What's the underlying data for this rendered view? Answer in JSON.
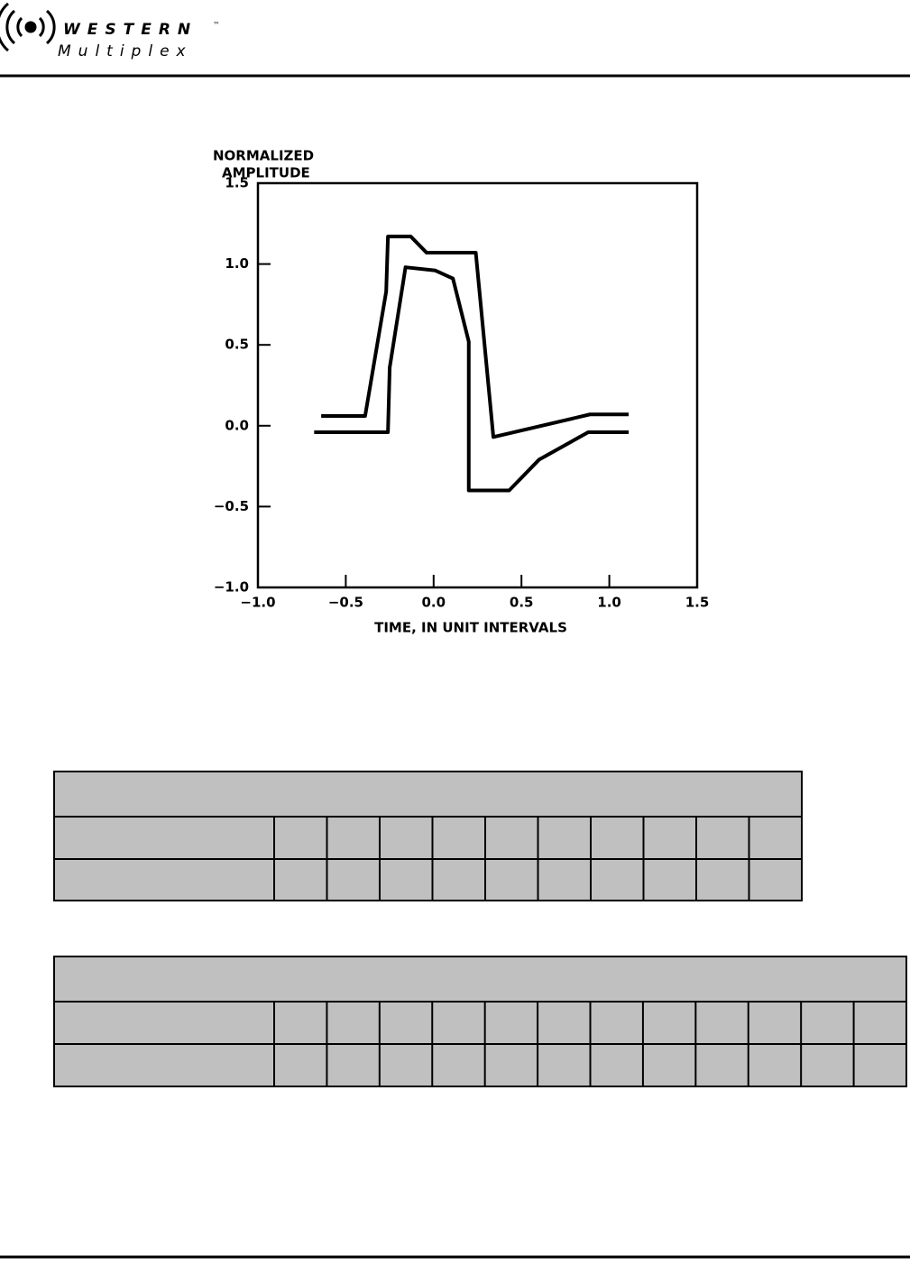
{
  "header": {
    "logo_name": "WESTERN",
    "logo_tm": "™",
    "logo_sub": "Multiplex"
  },
  "chart_data": {
    "type": "line",
    "y_label_lines": [
      "NORMALIZED",
      "AMPLITUDE"
    ],
    "x_label": "TIME, IN UNIT INTERVALS",
    "xlim": [
      -1.0,
      1.5
    ],
    "ylim": [
      -1.0,
      1.5
    ],
    "xticks": [
      {
        "value": -1.0,
        "label": "−1.0"
      },
      {
        "value": -0.5,
        "label": "−0.5"
      },
      {
        "value": 0,
        "label": "0.0"
      },
      0.5,
      {
        "value": 1.0,
        "label": "1.0"
      },
      1.5
    ],
    "yticks": [
      {
        "value": -1.0,
        "label": "−1.0"
      },
      {
        "value": -0.5,
        "label": "−0.5"
      },
      {
        "value": 0,
        "label": "0.0"
      },
      0.5,
      {
        "value": 1.0,
        "label": "1.0"
      },
      1.5
    ],
    "series": [
      {
        "color": "#000000",
        "x": [
          -0.64,
          -0.39,
          -0.27,
          -0.26,
          -0.13,
          -0.04,
          0.24,
          0.34,
          0.89,
          1.11
        ],
        "values": [
          0.06,
          0.06,
          0.83,
          1.17,
          1.17,
          1.07,
          1.07,
          -0.07,
          0.07,
          0.07
        ]
      },
      {
        "color": "#000000",
        "x": [
          -0.68,
          -0.26,
          -0.25,
          -0.16,
          0.01,
          0.11,
          0.2,
          0.2,
          0.43,
          0.6,
          0.88,
          1.11
        ],
        "values": [
          -0.04,
          -0.04,
          0.36,
          0.98,
          0.96,
          0.91,
          0.52,
          -0.4,
          -0.4,
          -0.21,
          -0.04,
          -0.04
        ]
      }
    ]
  }
}
